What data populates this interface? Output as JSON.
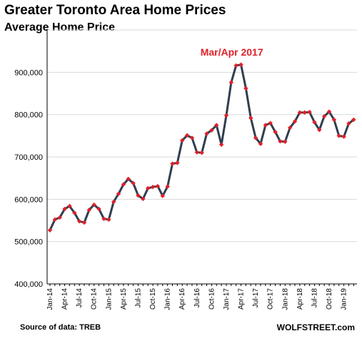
{
  "header": {
    "title": "Greater Toronto Area Home Prices",
    "subtitle": "Average Home Price"
  },
  "footer": {
    "source": "Source of data: TREB",
    "brand": "WOLFSTREET.com"
  },
  "colors": {
    "line": "#2f3f4f",
    "marker": "#e0202a",
    "annotation": "#e0202a",
    "grid": "#d9d9d9",
    "axis": "#000000"
  },
  "chart_data": {
    "type": "line",
    "title": "Greater Toronto Area Home Prices",
    "subtitle": "Average Home Price",
    "xlabel": "",
    "ylabel": "",
    "ylim": [
      400000,
      1000000
    ],
    "yticks": [
      400000,
      500000,
      600000,
      700000,
      800000,
      900000
    ],
    "ytick_labels": [
      "400,000",
      "500,000",
      "600,000",
      "700,000",
      "800,000",
      "900,000"
    ],
    "grid": "horizontal",
    "legend": "none",
    "xtick_labels": [
      "Jan-14",
      "Apr-14",
      "Jul-14",
      "Oct-14",
      "Jan-15",
      "Apr-15",
      "Jul-15",
      "Oct-15",
      "Jan-16",
      "Apr-16",
      "Jul-16",
      "Oct-16",
      "Jan-17",
      "Apr-17",
      "Jul-17",
      "Oct-17",
      "Jan-18",
      "Apr-18",
      "Jul-18",
      "Oct-18",
      "Jan-19"
    ],
    "annotation": {
      "text": "Mar/Apr 2017",
      "x": "2017-03"
    },
    "x": [
      "2014-01",
      "2014-02",
      "2014-03",
      "2014-04",
      "2014-05",
      "2014-06",
      "2014-07",
      "2014-08",
      "2014-09",
      "2014-10",
      "2014-11",
      "2014-12",
      "2015-01",
      "2015-02",
      "2015-03",
      "2015-04",
      "2015-05",
      "2015-06",
      "2015-07",
      "2015-08",
      "2015-09",
      "2015-10",
      "2015-11",
      "2015-12",
      "2016-01",
      "2016-02",
      "2016-03",
      "2016-04",
      "2016-05",
      "2016-06",
      "2016-07",
      "2016-08",
      "2016-09",
      "2016-10",
      "2016-11",
      "2016-12",
      "2017-01",
      "2017-02",
      "2017-03",
      "2017-04",
      "2017-05",
      "2017-06",
      "2017-07",
      "2017-08",
      "2017-09",
      "2017-10",
      "2017-11",
      "2017-12",
      "2018-01",
      "2018-02",
      "2018-03",
      "2018-04",
      "2018-05",
      "2018-06",
      "2018-07",
      "2018-08",
      "2018-09",
      "2018-10",
      "2018-11",
      "2018-12",
      "2019-01",
      "2019-02",
      "2019-03"
    ],
    "values": [
      527000,
      552000,
      557000,
      577000,
      584000,
      568000,
      548000,
      545000,
      575000,
      587000,
      577000,
      554000,
      552000,
      594000,
      613000,
      635000,
      648000,
      638000,
      609000,
      601000,
      626000,
      629000,
      631000,
      608000,
      630000,
      684000,
      686000,
      739000,
      751000,
      745000,
      711000,
      710000,
      755000,
      763000,
      775000,
      729000,
      798000,
      876000,
      916000,
      918000,
      862000,
      792000,
      745000,
      731000,
      775000,
      780000,
      759000,
      737000,
      736000,
      769000,
      784000,
      805000,
      805000,
      806000,
      782000,
      764000,
      796000,
      807000,
      788000,
      750000,
      748000,
      779000,
      788000
    ]
  }
}
